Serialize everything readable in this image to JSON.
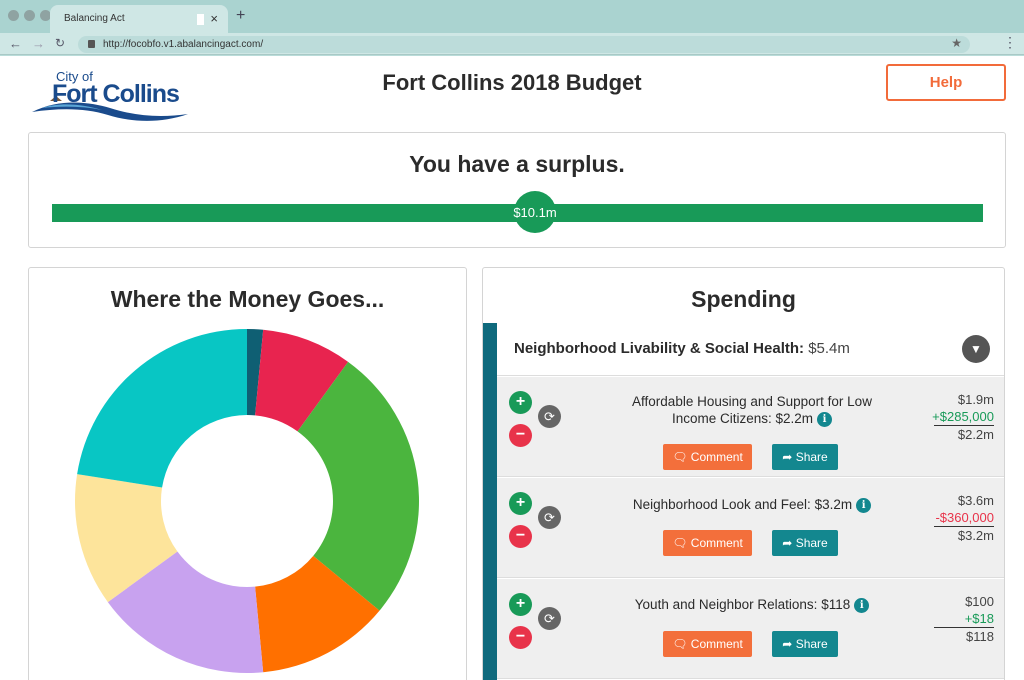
{
  "browser": {
    "tab_title": "Balancing Act",
    "url": "http://focobfo.v1.abalancingact.com/"
  },
  "header": {
    "logo_line1": "City of",
    "logo_line2": "Fort Collins",
    "title": "Fort Collins 2018 Budget",
    "help_label": "Help"
  },
  "surplus": {
    "title": "You have a surplus.",
    "value": "$10.1m",
    "colors": {
      "bar": "#189a58"
    }
  },
  "donut": {
    "title": "Where the Money Goes...",
    "chart_data": {
      "type": "pie",
      "hole": true,
      "slices": [
        {
          "value": 1.5,
          "color": "#0f5f73"
        },
        {
          "value": 8.5,
          "color": "#e8244f"
        },
        {
          "value": 26,
          "color": "#4bb53e"
        },
        {
          "value": 12.5,
          "color": "#ff7000"
        },
        {
          "value": 16.5,
          "color": "#c8a2ef"
        },
        {
          "value": 12.5,
          "color": "#fde49b"
        },
        {
          "value": 22.5,
          "color": "#08c6c4"
        }
      ]
    }
  },
  "spending": {
    "title": "Spending",
    "category": {
      "name": "Neighborhood Livability & Social Health:",
      "amount": "$5.4m",
      "toggle_icon": "chevron-down-icon"
    },
    "items": [
      {
        "label": "Affordable Housing and Support for Low Income Citizens:",
        "amount": "$2.2m",
        "base": "$1.9m",
        "change": "+$285,000",
        "change_type": "pos",
        "total": "$2.2m",
        "comment_label": "Comment",
        "share_label": "Share"
      },
      {
        "label": "Neighborhood Look and Feel:",
        "amount": "$3.2m",
        "base": "$3.6m",
        "change": "-$360,000",
        "change_type": "neg",
        "total": "$3.2m",
        "comment_label": "Comment",
        "share_label": "Share"
      },
      {
        "label": "Youth and Neighbor Relations:",
        "amount": "$118",
        "base": "$100",
        "change": "+$18",
        "change_type": "pos",
        "total": "$118",
        "comment_label": "Comment",
        "share_label": "Share"
      }
    ]
  }
}
